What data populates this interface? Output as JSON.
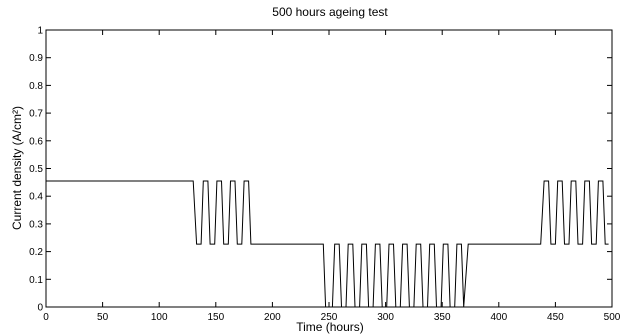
{
  "chart_data": {
    "type": "line",
    "title": "500 hours ageing test",
    "xlabel": "Time (hours)",
    "ylabel": "Current density (A/cm²)",
    "xlim": [
      0,
      500
    ],
    "ylim": [
      0,
      1
    ],
    "xticks": [
      0,
      50,
      100,
      150,
      200,
      250,
      300,
      350,
      400,
      450,
      500
    ],
    "yticks": [
      0,
      0.1,
      0.2,
      0.3,
      0.4,
      0.5,
      0.6,
      0.7,
      0.8,
      0.9,
      1
    ],
    "ytick_labels": [
      "0",
      "0.1",
      "0.2",
      "0.3",
      "0.4",
      "0.5",
      "0.6",
      "0.7",
      "0.8",
      "0.9",
      "1"
    ],
    "grid": false,
    "line_color": "#000000",
    "series": [
      {
        "x": [
          0,
          130,
          133,
          137,
          139,
          143,
          145,
          149,
          151,
          155,
          157,
          161,
          163,
          167,
          169,
          173,
          175,
          179,
          181,
          245,
          247,
          253,
          255,
          259,
          261,
          265,
          267,
          271,
          273,
          277,
          279,
          283,
          285,
          289,
          291,
          295,
          297,
          301,
          303,
          307,
          309,
          313,
          315,
          319,
          321,
          325,
          327,
          331,
          333,
          337,
          339,
          343,
          345,
          349,
          351,
          355,
          357,
          361,
          363,
          367,
          369,
          373,
          437,
          440,
          444,
          446,
          450,
          452,
          456,
          458,
          462,
          464,
          468,
          470,
          474,
          476,
          480,
          482,
          486,
          488,
          492,
          494,
          497
        ],
        "y": [
          0.455,
          0.455,
          0.227,
          0.227,
          0.455,
          0.455,
          0.227,
          0.227,
          0.455,
          0.455,
          0.227,
          0.227,
          0.455,
          0.455,
          0.227,
          0.227,
          0.455,
          0.455,
          0.227,
          0.227,
          0,
          0,
          0.227,
          0.227,
          0,
          0,
          0.227,
          0.227,
          0,
          0,
          0.227,
          0.227,
          0,
          0,
          0.227,
          0.227,
          0,
          0,
          0.227,
          0.227,
          0,
          0,
          0.227,
          0.227,
          0,
          0,
          0.227,
          0.227,
          0,
          0,
          0.227,
          0.227,
          0,
          0,
          0.227,
          0.227,
          0,
          0,
          0.227,
          0.227,
          0,
          0.227,
          0.227,
          0.455,
          0.455,
          0.227,
          0.227,
          0.455,
          0.455,
          0.227,
          0.227,
          0.455,
          0.455,
          0.227,
          0.227,
          0.455,
          0.455,
          0.227,
          0.227,
          0.455,
          0.455,
          0.227,
          0.227
        ]
      }
    ]
  }
}
